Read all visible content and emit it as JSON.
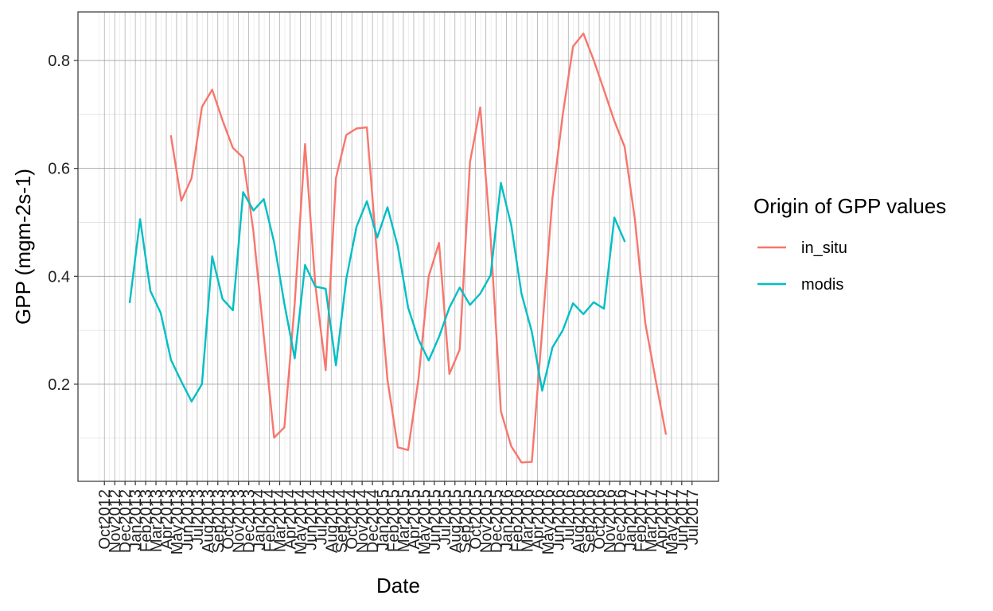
{
  "chart_data": {
    "type": "line",
    "title": "",
    "xlabel": "Date",
    "ylabel": "GPP (mgm-2s-1)",
    "ylim": [
      0.02,
      0.89
    ],
    "yticks": [
      0.2,
      0.4,
      0.6,
      0.8
    ],
    "ytick_labels": [
      "0.2",
      "0.4",
      "0.6",
      "0.8"
    ],
    "x_range": [
      "2012-10",
      "2017-07"
    ],
    "x_tick_labels": [
      "Oct2012",
      "Nov2012",
      "Dec2012",
      "Jan2013",
      "Feb2013",
      "Mar2013",
      "Apr2013",
      "May2013",
      "Jun2013",
      "Jul2013",
      "Aug2013",
      "Sep2013",
      "Oct2013",
      "Nov2013",
      "Dec2013",
      "Jan2014",
      "Feb2014",
      "Mar2014",
      "Apr2014",
      "May2014",
      "Jun2014",
      "Jul2014",
      "Aug2014",
      "Sep2014",
      "Oct2014",
      "Nov2014",
      "Dec2014",
      "Jan2015",
      "Feb2015",
      "Mar2015",
      "Apr2015",
      "May2015",
      "Jun2015",
      "Jul2015",
      "Aug2015",
      "Sep2015",
      "Oct2015",
      "Nov2015",
      "Dec2015",
      "Jan2016",
      "Feb2016",
      "Mar2016",
      "Apr2016",
      "May2016",
      "Jun2016",
      "Jul2016",
      "Aug2016",
      "Sep2016",
      "Oct2016",
      "Nov2016",
      "Dec2016",
      "Jan2017",
      "Feb2017",
      "Mar2017",
      "Apr2017",
      "May2017",
      "Jun2017",
      "Jul2017"
    ],
    "grid": true,
    "legend": {
      "title": "Origin of GPP values",
      "placement": "right"
    },
    "series": [
      {
        "name": "in_situ",
        "color": "#F8766D",
        "x": [
          "2013-04-15",
          "2013-05-15",
          "2013-06-15",
          "2013-07-15",
          "2013-08-15",
          "2013-09-15",
          "2013-10-15",
          "2013-11-15",
          "2013-12-15",
          "2014-01-15",
          "2014-02-15",
          "2014-03-15",
          "2014-04-15",
          "2014-05-15",
          "2014-06-15",
          "2014-07-15",
          "2014-08-15",
          "2014-09-15",
          "2014-10-15",
          "2014-11-15",
          "2014-12-15",
          "2015-01-15",
          "2015-02-15",
          "2015-03-15",
          "2015-04-15",
          "2015-05-15",
          "2015-06-15",
          "2015-07-15",
          "2015-08-15",
          "2015-09-15",
          "2015-10-15",
          "2015-11-15",
          "2015-12-15",
          "2016-01-15",
          "2016-02-15",
          "2016-03-15",
          "2016-04-15",
          "2016-05-15",
          "2016-06-15",
          "2016-07-15",
          "2016-08-15",
          "2016-09-15",
          "2016-10-15",
          "2016-11-15",
          "2016-12-15",
          "2017-01-15",
          "2017-02-15",
          "2017-03-15",
          "2017-04-15",
          "2017-05-15"
        ],
        "y": [
          0.66,
          0.54,
          0.582,
          0.714,
          0.746,
          0.689,
          0.638,
          0.62,
          0.482,
          0.29,
          0.101,
          0.12,
          0.35,
          0.645,
          0.384,
          0.226,
          0.582,
          0.662,
          0.674,
          0.676,
          0.434,
          0.208,
          0.083,
          0.078,
          0.209,
          0.4,
          0.462,
          0.219,
          0.264,
          0.612,
          0.713,
          0.472,
          0.15,
          0.085,
          0.055,
          0.056,
          0.3,
          0.545,
          0.7,
          0.826,
          0.85,
          0.801,
          0.745,
          0.688,
          0.64,
          0.505,
          0.314,
          0.209,
          0.108,
          null
        ]
      },
      {
        "name": "modis",
        "color": "#00BFC4",
        "x": [
          "2012-12-15",
          "2013-01-15",
          "2013-02-15",
          "2013-03-15",
          "2013-04-15",
          "2013-05-15",
          "2013-06-15",
          "2013-07-15",
          "2013-08-15",
          "2013-09-15",
          "2013-10-15",
          "2013-11-15",
          "2013-12-15",
          "2014-01-15",
          "2014-02-15",
          "2014-03-15",
          "2014-04-15",
          "2014-05-15",
          "2014-06-15",
          "2014-07-15",
          "2014-08-15",
          "2014-09-15",
          "2014-10-15",
          "2014-11-15",
          "2014-12-15",
          "2015-01-15",
          "2015-02-15",
          "2015-03-15",
          "2015-04-15",
          "2015-05-15",
          "2015-06-15",
          "2015-07-15",
          "2015-08-15",
          "2015-09-15",
          "2015-10-15",
          "2015-11-15",
          "2015-12-15",
          "2016-01-15",
          "2016-02-15",
          "2016-03-15",
          "2016-04-15",
          "2016-05-15",
          "2016-06-15",
          "2016-07-15",
          "2016-08-15",
          "2016-09-15",
          "2016-10-15",
          "2016-11-15",
          "2016-12-15"
        ],
        "y": [
          0.352,
          0.506,
          0.373,
          0.332,
          0.245,
          0.205,
          0.168,
          0.2,
          0.437,
          0.358,
          0.337,
          0.556,
          0.522,
          0.543,
          0.463,
          0.349,
          0.248,
          0.421,
          0.381,
          0.377,
          0.235,
          0.395,
          0.492,
          0.539,
          0.472,
          0.528,
          0.455,
          0.342,
          0.283,
          0.244,
          0.288,
          0.342,
          0.379,
          0.347,
          0.368,
          0.402,
          0.573,
          0.495,
          0.368,
          0.297,
          0.188,
          0.268,
          0.3,
          0.35,
          0.33,
          0.352,
          0.34,
          0.509,
          0.465
        ]
      }
    ]
  }
}
